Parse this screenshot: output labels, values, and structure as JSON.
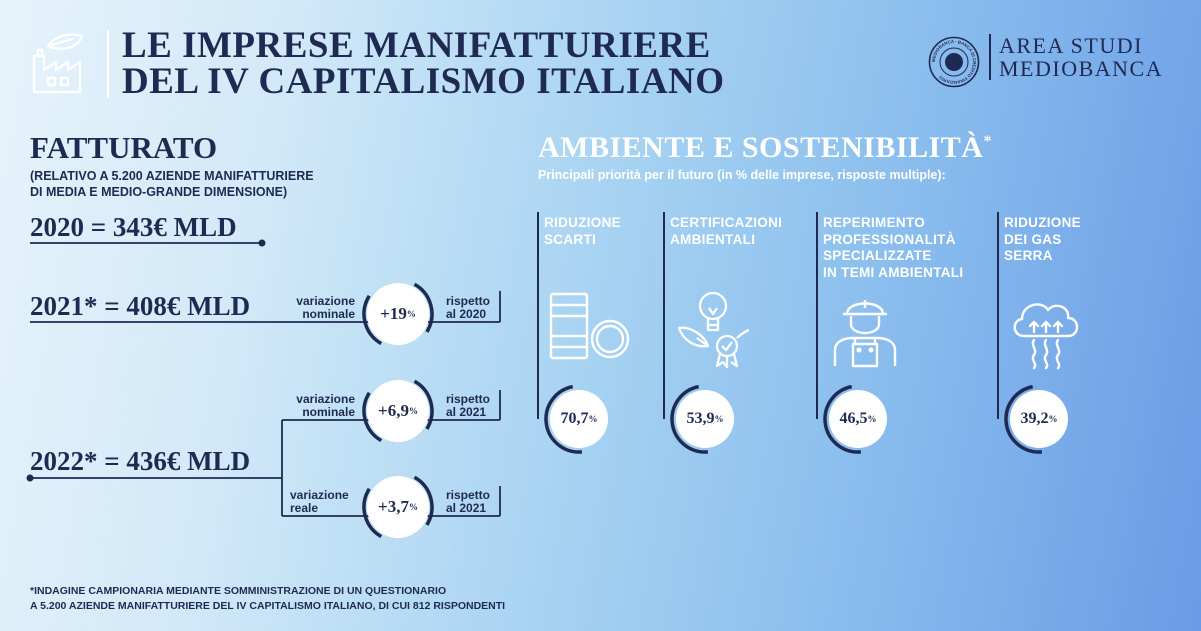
{
  "header": {
    "title_line1": "LE IMPRESE MANIFATTURIERE",
    "title_line2": "DEL IV CAPITALISMO ITALIANO",
    "brand_line1": "AREA STUDI",
    "brand_line2": "MEDIOBANCA",
    "logo_icon": "factory-leaf-icon",
    "seal_icon": "mediobanca-seal-icon",
    "seal_text": "MEDIOBANCA · BANCA DI CREDITO FINANZIARIO"
  },
  "fatturato": {
    "heading": "FATTURATO",
    "sub_line1": "(RELATIVO A 5.200 AZIENDE MANIFATTURIERE",
    "sub_line2": "DI MEDIA E MEDIO-GRANDE DIMENSIONE)",
    "y2020": "2020 = 343€ MLD",
    "y2021": "2021* = 408€ MLD",
    "y2022": "2022* = 436€ MLD",
    "r2021": {
      "label_l1": "variazione",
      "label_l2": "nominale",
      "value": "+19",
      "unit": "%",
      "rif_l1": "rispetto",
      "rif_l2": "al 2020"
    },
    "r2022a": {
      "label_l1": "variazione",
      "label_l2": "nominale",
      "value": "+6,9",
      "unit": "%",
      "rif_l1": "rispetto",
      "rif_l2": "al 2021"
    },
    "r2022b": {
      "label_l1": "variazione",
      "label_l2": "reale",
      "value": "+3,7",
      "unit": "%",
      "rif_l1": "rispetto",
      "rif_l2": "al 2021"
    }
  },
  "ambiente": {
    "heading": "AMBIENTE E SOSTENIBILITÀ",
    "heading_mark": "*",
    "subtitle": "Principali priorità per il futuro (in % delle imprese, risposte multiple):",
    "items": [
      {
        "lines": [
          "RIDUZIONE",
          "SCARTI"
        ],
        "value": "70,7",
        "unit": "%",
        "icon": "barrels-icon"
      },
      {
        "lines": [
          "CERTIFICAZIONI",
          "AMBIENTALI"
        ],
        "value": "53,9",
        "unit": "%",
        "icon": "lightbulb-leaves-icon"
      },
      {
        "lines": [
          "REPERIMENTO",
          "PROFESSIONALITÀ",
          "SPECIALIZZATE",
          "IN TEMI AMBIENTALI"
        ],
        "value": "46,5",
        "unit": "%",
        "icon": "worker-icon"
      },
      {
        "lines": [
          "RIDUZIONE",
          "DEI GAS",
          "SERRA"
        ],
        "value": "39,2",
        "unit": "%",
        "icon": "cloud-gas-icon"
      }
    ]
  },
  "footnote": {
    "line1": "*INDAGINE CAMPIONARIA MEDIANTE SOMMINISTRAZIONE DI UN QUESTIONARIO",
    "line2": "A 5.200 AZIENDE MANIFATTURIERE DEL IV CAPITALISMO ITALIANO, DI CUI 812 RISPONDENTI"
  },
  "colors": {
    "navy": "#1f2a52",
    "white": "#ffffff"
  }
}
